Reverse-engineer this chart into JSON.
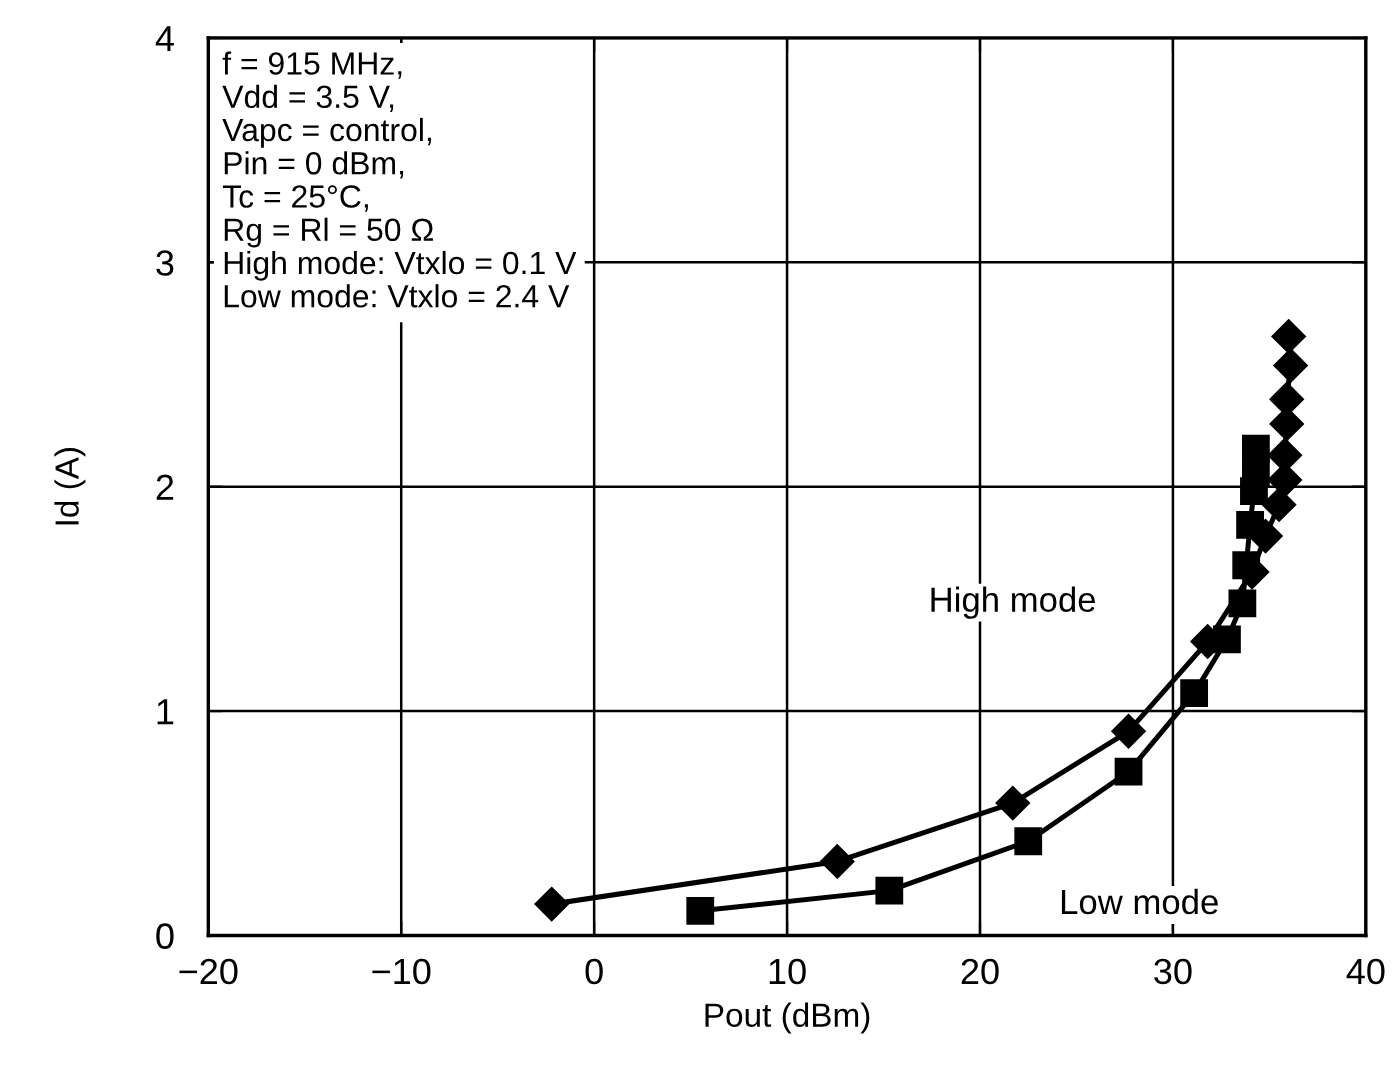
{
  "chart_data": {
    "type": "line",
    "xlabel": "Pout (dBm)",
    "ylabel": "Id (A)",
    "xlim": [
      -20,
      40
    ],
    "ylim": [
      0,
      4
    ],
    "xticks": [
      {
        "value": -20,
        "label": "−20"
      },
      {
        "value": -10,
        "label": "−10"
      },
      0,
      10,
      20,
      30,
      40
    ],
    "yticks": [
      0,
      1,
      2,
      3,
      4
    ],
    "grid": true,
    "series": [
      {
        "name": "High mode",
        "color": "#000000",
        "marker": "diamond",
        "x": [
          -2.2,
          12.6,
          21.7,
          27.7,
          31.8,
          34.1,
          34.8,
          35.5,
          35.8,
          35.8,
          35.9,
          35.9,
          36.1,
          36.0
        ],
        "values": [
          0.14,
          0.33,
          0.59,
          0.91,
          1.31,
          1.62,
          1.78,
          1.92,
          2.03,
          2.14,
          2.28,
          2.39,
          2.54,
          2.67
        ]
      },
      {
        "name": "Low mode",
        "color": "#000000",
        "marker": "square",
        "x": [
          5.5,
          15.3,
          22.5,
          27.7,
          31.1,
          32.8,
          33.6,
          33.8,
          34.0,
          34.2,
          34.3,
          34.3
        ],
        "values": [
          0.11,
          0.2,
          0.42,
          0.73,
          1.08,
          1.32,
          1.48,
          1.65,
          1.83,
          1.98,
          2.06,
          2.17
        ]
      }
    ],
    "annotations": [
      "f = 915 MHz,\nVdd = 3.5 V,\nVapc = control,\nPin = 0 dBm,\nTc = 25°C,\nRg = Rl = 50 Ω\nHigh mode: Vtxlo = 0.1 V\nLow mode: Vtxlo = 2.4 V"
    ]
  }
}
